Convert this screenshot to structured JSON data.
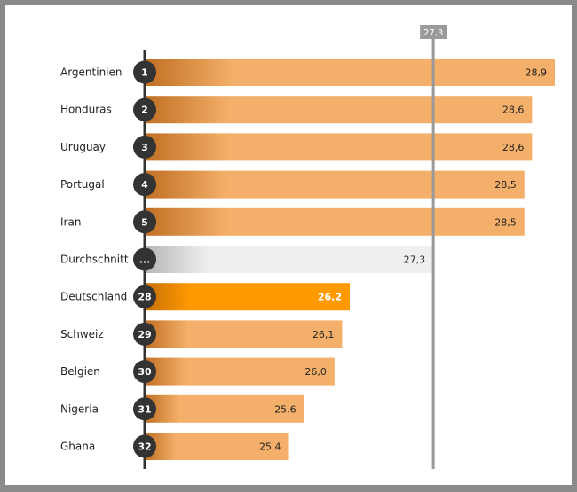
{
  "chart_data": {
    "type": "bar",
    "orientation": "horizontal",
    "reference_line": {
      "label": "27,3",
      "value": 27.3
    },
    "rows": [
      {
        "rank": "1",
        "category": "Argentinien",
        "value": 28.9,
        "value_label": "28,9",
        "kind": "normal"
      },
      {
        "rank": "2",
        "category": "Honduras",
        "value": 28.6,
        "value_label": "28,6",
        "kind": "normal"
      },
      {
        "rank": "3",
        "category": "Uruguay",
        "value": 28.6,
        "value_label": "28,6",
        "kind": "normal"
      },
      {
        "rank": "4",
        "category": "Portugal",
        "value": 28.5,
        "value_label": "28,5",
        "kind": "normal"
      },
      {
        "rank": "5",
        "category": "Iran",
        "value": 28.5,
        "value_label": "28,5",
        "kind": "normal"
      },
      {
        "rank": "...",
        "category": "Durchschnitt",
        "value": 27.3,
        "value_label": "27,3",
        "kind": "average"
      },
      {
        "rank": "28",
        "category": "Deutschland",
        "value": 26.2,
        "value_label": "26,2",
        "kind": "highlight"
      },
      {
        "rank": "29",
        "category": "Schweiz",
        "value": 26.1,
        "value_label": "26,1",
        "kind": "normal"
      },
      {
        "rank": "30",
        "category": "Belgien",
        "value": 26.0,
        "value_label": "26,0",
        "kind": "normal"
      },
      {
        "rank": "31",
        "category": "Nigeria",
        "value": 25.6,
        "value_label": "25,6",
        "kind": "normal"
      },
      {
        "rank": "32",
        "category": "Ghana",
        "value": 25.4,
        "value_label": "25,4",
        "kind": "normal"
      }
    ],
    "colors": {
      "bar": "#f4b06a",
      "bar_dark": "#c06f22",
      "highlight": "#ff9900",
      "highlight_dark": "#c46e08",
      "average_bar": "#efefef",
      "average_dark": "#b5b5b5",
      "axis": "#333333",
      "reference_line": "#9a9a9a",
      "rank_circle": "#333333"
    }
  },
  "toolbar": {}
}
